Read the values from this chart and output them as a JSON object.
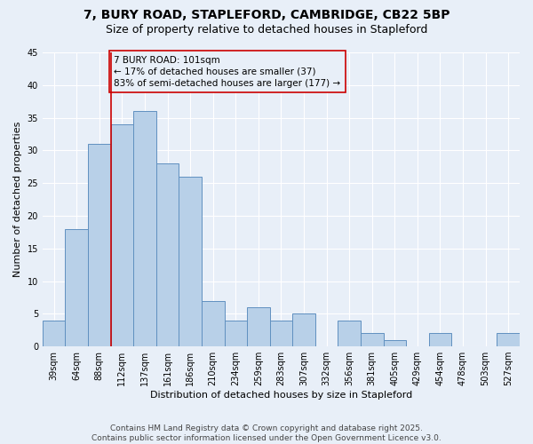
{
  "title_line1": "7, BURY ROAD, STAPLEFORD, CAMBRIDGE, CB22 5BP",
  "title_line2": "Size of property relative to detached houses in Stapleford",
  "xlabel": "Distribution of detached houses by size in Stapleford",
  "ylabel": "Number of detached properties",
  "bar_labels": [
    "39sqm",
    "64sqm",
    "88sqm",
    "112sqm",
    "137sqm",
    "161sqm",
    "186sqm",
    "210sqm",
    "234sqm",
    "259sqm",
    "283sqm",
    "307sqm",
    "332sqm",
    "356sqm",
    "381sqm",
    "405sqm",
    "429sqm",
    "454sqm",
    "478sqm",
    "503sqm",
    "527sqm"
  ],
  "bar_values": [
    4,
    18,
    31,
    34,
    36,
    28,
    26,
    7,
    4,
    6,
    4,
    5,
    0,
    4,
    2,
    1,
    0,
    2,
    0,
    0,
    2
  ],
  "bar_color": "#b8d0e8",
  "bar_edge_color": "#6090c0",
  "background_color": "#e8eff8",
  "grid_color": "#ffffff",
  "vline_color": "#cc0000",
  "vline_position": 2.5,
  "annotation_text": "7 BURY ROAD: 101sqm\n← 17% of detached houses are smaller (37)\n83% of semi-detached houses are larger (177) →",
  "annotation_box_edgecolor": "#cc0000",
  "ylim": [
    0,
    45
  ],
  "yticks": [
    0,
    5,
    10,
    15,
    20,
    25,
    30,
    35,
    40,
    45
  ],
  "footer_text": "Contains HM Land Registry data © Crown copyright and database right 2025.\nContains public sector information licensed under the Open Government Licence v3.0.",
  "title_fontsize": 10,
  "subtitle_fontsize": 9,
  "axis_label_fontsize": 8,
  "tick_fontsize": 7,
  "annotation_fontsize": 7.5,
  "footer_fontsize": 6.5
}
